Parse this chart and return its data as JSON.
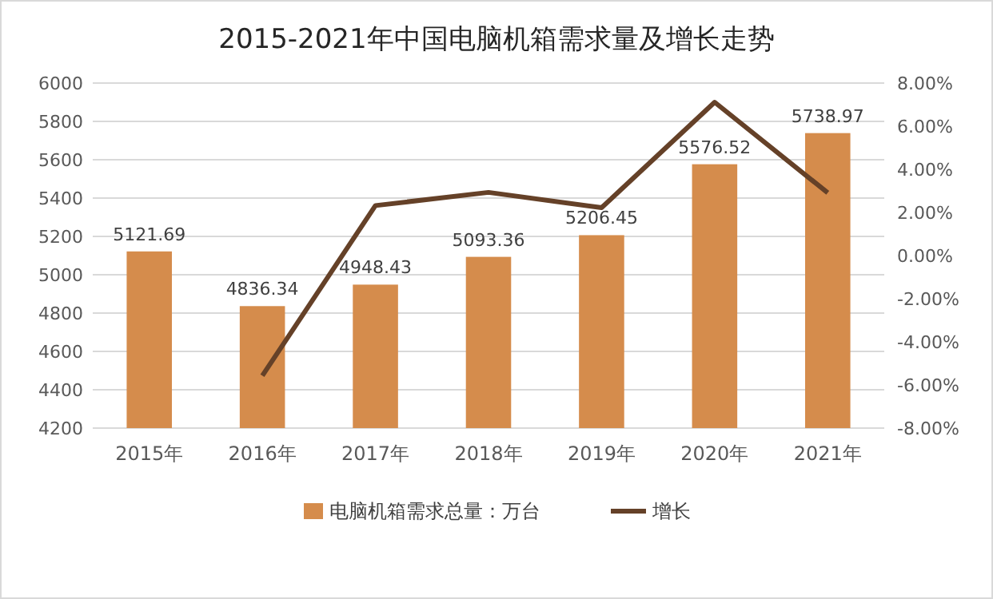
{
  "chart_data": {
    "type": "bar",
    "title": "2015-2021年中国电脑机箱需求量及增长走势",
    "categories": [
      "2015年",
      "2016年",
      "2017年",
      "2018年",
      "2019年",
      "2020年",
      "2021年"
    ],
    "series": [
      {
        "name": "电脑机箱需求总量：万台",
        "color": "#d58c4c",
        "values": [
          5121.69,
          4836.34,
          4948.43,
          5093.36,
          5206.45,
          5576.52,
          5738.97
        ]
      },
      {
        "name": "增长",
        "type": "line",
        "axis": "y2",
        "color": "#654128",
        "values": [
          null,
          -5.57,
          2.32,
          2.93,
          2.22,
          7.11,
          2.91
        ]
      }
    ],
    "ylim": [
      4200,
      6000
    ],
    "yticks": [
      4200,
      4400,
      4600,
      4800,
      5000,
      5200,
      5400,
      5600,
      5800,
      6000
    ],
    "y2lim": [
      -8,
      8
    ],
    "y2ticks": [
      {
        "value": -8,
        "label": "-8.00%"
      },
      {
        "value": -6,
        "label": "-6.00%"
      },
      {
        "value": -4,
        "label": "-4.00%"
      },
      {
        "value": -2,
        "label": "-2.00%"
      },
      {
        "value": 0,
        "label": "0.00%"
      },
      {
        "value": 2,
        "label": "2.00%"
      },
      {
        "value": 4,
        "label": "4.00%"
      },
      {
        "value": 6,
        "label": "6.00%"
      },
      {
        "value": 8,
        "label": "8.00%"
      }
    ],
    "value_labels": [
      "5121.69",
      "4836.34",
      "4948.43",
      "5093.36",
      "5206.45",
      "5576.52",
      "5738.97"
    ],
    "grid": "y",
    "legend": "bottom",
    "marker": "none",
    "line_style": "solid"
  }
}
